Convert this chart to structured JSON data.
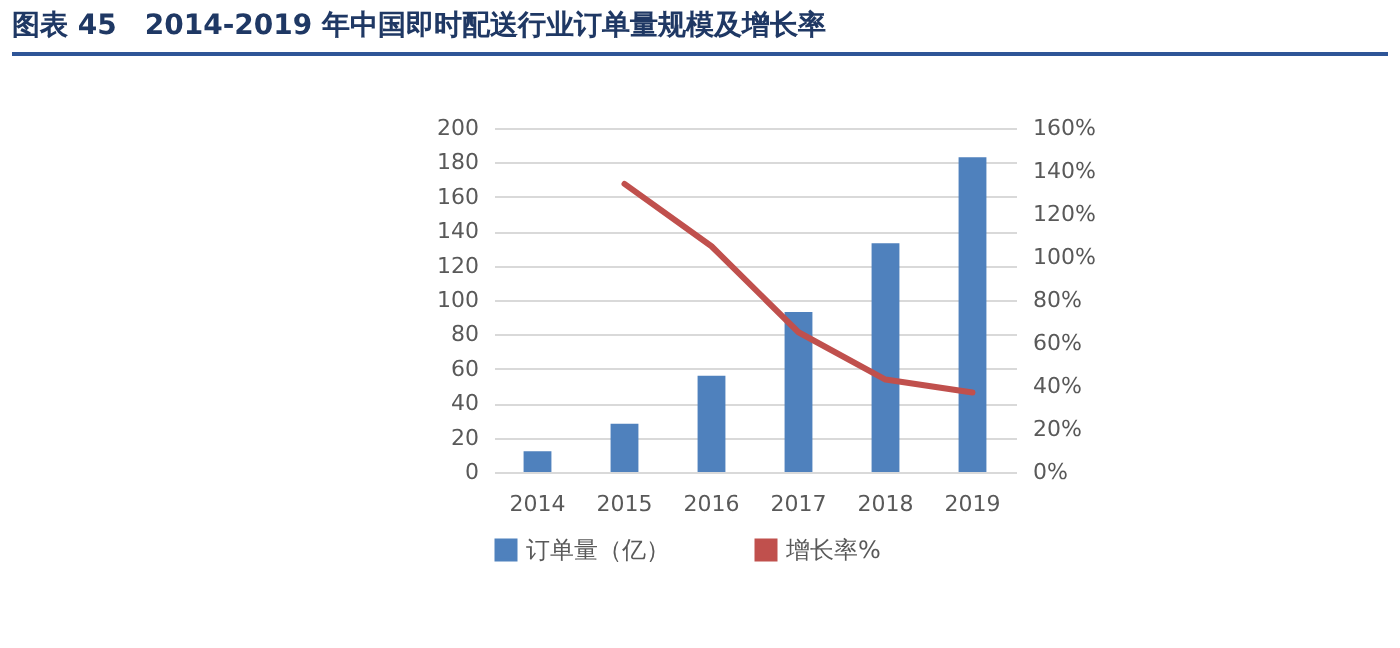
{
  "chart_data": {
    "type": "bar",
    "title": "图表 45　2014-2019 年中国即时配送行业订单量规模及增长率",
    "categories": [
      "2014",
      "2015",
      "2016",
      "2017",
      "2018",
      "2019"
    ],
    "series": [
      {
        "name": "订单量（亿）",
        "color": "#4f81bd",
        "values": [
          12,
          28,
          56,
          93,
          133,
          183
        ]
      },
      {
        "name": "增长率%",
        "type": "line",
        "axis": "y2",
        "color": "#c0504d",
        "values": [
          null,
          134,
          105,
          65,
          43,
          37
        ]
      }
    ],
    "ylim": [
      0,
      200
    ],
    "yticks": [
      0,
      20,
      40,
      60,
      80,
      100,
      120,
      140,
      160,
      180,
      200
    ],
    "y2lim": [
      0,
      160
    ],
    "y2ticks": [
      {
        "value": 0,
        "label": "0%"
      },
      {
        "value": 20,
        "label": "20%"
      },
      {
        "value": 40,
        "label": "40%"
      },
      {
        "value": 60,
        "label": "60%"
      },
      {
        "value": 80,
        "label": "80%"
      },
      {
        "value": 100,
        "label": "100%"
      },
      {
        "value": 120,
        "label": "120%"
      },
      {
        "value": 140,
        "label": "140%"
      },
      {
        "value": 160,
        "label": "160%"
      }
    ],
    "grid": "y",
    "legend": "bottom",
    "marker": "none"
  }
}
